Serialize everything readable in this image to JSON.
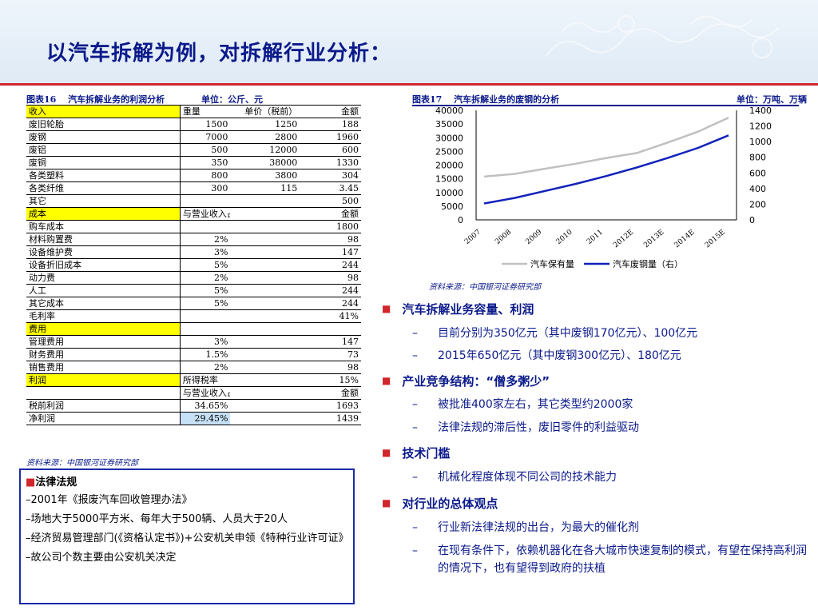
{
  "title": "以汽车拆解为例，对拆解行业分析：",
  "table16": {
    "caption": "图表16　 汽车拆解业务的利润分析",
    "unit": "单位：公斤、元",
    "source": "资料来源：中国银河证券研究部",
    "rows": [
      {
        "c1": "收入",
        "c2": "重量",
        "c3": "单价（税前）",
        "c4": "金额",
        "yellow": true
      },
      {
        "c1": "废旧轮胎",
        "c2": "1500",
        "c3": "1250",
        "c4": "188"
      },
      {
        "c1": "废钢",
        "c2": "7000",
        "c3": "2800",
        "c4": "1960"
      },
      {
        "c1": "废铝",
        "c2": "500",
        "c3": "12000",
        "c4": "600"
      },
      {
        "c1": "废铜",
        "c2": "350",
        "c3": "38000",
        "c4": "1330"
      },
      {
        "c1": "各类塑料",
        "c2": "800",
        "c3": "3800",
        "c4": "304"
      },
      {
        "c1": "各类纤维",
        "c2": "300",
        "c3": "115",
        "c4": "3.45"
      },
      {
        "c1": "其它",
        "c2": "",
        "c3": "",
        "c4": "500"
      },
      {
        "c1": "成本",
        "c2": "与营业收入占比",
        "c3": "",
        "c4": "金额",
        "yellow": true
      },
      {
        "c1": "购车成本",
        "c2": "",
        "c3": "",
        "c4": "1800"
      },
      {
        "c1": "材料购置费",
        "c2": "2%",
        "c3": "",
        "c4": "98"
      },
      {
        "c1": "设备维护费",
        "c2": "3%",
        "c3": "",
        "c4": "147"
      },
      {
        "c1": "设备折旧成本",
        "c2": "5%",
        "c3": "",
        "c4": "244"
      },
      {
        "c1": "动力费",
        "c2": "2%",
        "c3": "",
        "c4": "98"
      },
      {
        "c1": "人工",
        "c2": "5%",
        "c3": "",
        "c4": "244"
      },
      {
        "c1": "其它成本",
        "c2": "5%",
        "c3": "",
        "c4": "244"
      },
      {
        "c1": "毛利率",
        "c2": "",
        "c3": "",
        "c4": "41%"
      },
      {
        "c1": "费用",
        "c2": "",
        "c3": "",
        "c4": "",
        "yellow": true
      },
      {
        "c1": "管理费用",
        "c2": "3%",
        "c3": "",
        "c4": "147"
      },
      {
        "c1": "财务费用",
        "c2": "1.5%",
        "c3": "",
        "c4": "73"
      },
      {
        "c1": "销售费用",
        "c2": "2%",
        "c3": "",
        "c4": "98"
      },
      {
        "c1": "利润",
        "c2": "所得税率",
        "c3": "",
        "c4": "15%",
        "yellow": true
      },
      {
        "c1": "",
        "c2": "与营业收入占比",
        "c3": "",
        "c4": "金额"
      },
      {
        "c1": "税前利润",
        "c2": "34.65%",
        "c3": "",
        "c4": "1693"
      },
      {
        "c1": "净利润",
        "c2": "29.45%",
        "c3": "",
        "c4": "1439",
        "c2_blue": true
      }
    ]
  },
  "legal": {
    "heading": "法律法规",
    "items": [
      "–2001年《报废汽车回收管理办法》",
      "–场地大于5000平方米、每年大于500辆、人员大于20人",
      "–经济贸易管理部门(《资格认定书》)+公安机关申领《特种行业许可证》",
      "–故公司个数主要由公安机关决定"
    ]
  },
  "chart17": {
    "caption": "图表17　 汽车拆解业务的废钢的分析",
    "unit": "单位：万吨、万辆",
    "source": "资料来源：中国银河证券研究部"
  },
  "chart_data": {
    "type": "line",
    "title": "图表17　 汽车拆解业务的废钢的分析",
    "x": [
      "2007",
      "2008",
      "2009",
      "2010",
      "2011",
      "2012E",
      "2013E",
      "2014E",
      "2015E"
    ],
    "y_left": {
      "ticks": [
        "0",
        "5000",
        "10000",
        "15000",
        "20000",
        "25000",
        "30000",
        "35000",
        "40000"
      ],
      "ylim": [
        0,
        40000
      ]
    },
    "y_right": {
      "ticks": [
        "0",
        "200",
        "400",
        "600",
        "800",
        "1000",
        "1200",
        "1400"
      ],
      "ylim": [
        0,
        1400
      ]
    },
    "series": [
      {
        "name": "汽车保有量",
        "axis": "left",
        "color": "#c0c0c0",
        "values": [
          15800,
          16800,
          18700,
          20500,
          22600,
          24400,
          28200,
          32200,
          37300
        ]
      },
      {
        "name": "汽车废钢量（右）",
        "axis": "right",
        "color": "#1122bb",
        "values": [
          210,
          280,
          370,
          460,
          560,
          670,
          790,
          920,
          1080
        ]
      }
    ],
    "legend": "bottom",
    "grid": false
  },
  "bullets": [
    {
      "heading": "汽车拆解业务容量、利润",
      "items": [
        "目前分别为350亿元（其中废钢170亿元）、100亿元",
        "2015年650亿元（其中废钢300亿元）、180亿元"
      ]
    },
    {
      "heading": "产业竞争结构：“僧多粥少”",
      "items": [
        "被批准400家左右，其它类型约2000家",
        "法律法规的滞后性，废旧零件的利益驱动"
      ]
    },
    {
      "heading": "技术门槛",
      "items": [
        "机械化程度体现不同公司的技术能力"
      ]
    },
    {
      "heading": "对行业的总体观点",
      "items": [
        "行业新法律法规的出台，为最大的催化剂",
        "在现有条件下，依赖机器化在各大城市快速复制的模式，有望在保持高利润的情况下，也有望得到政府的扶植"
      ]
    }
  ]
}
